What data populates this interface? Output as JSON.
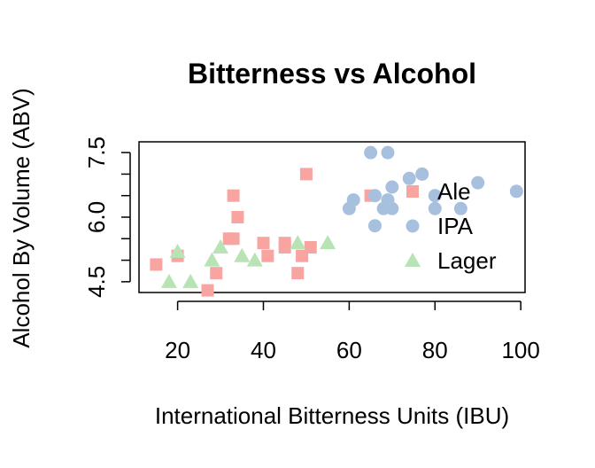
{
  "chart_data": {
    "type": "scatter",
    "title": "Bitterness vs Alcohol",
    "xlabel": "International Bitterness Units (IBU)",
    "ylabel": "Alcohol By Volume (ABV)",
    "xlim": [
      11,
      101
    ],
    "ylim": [
      4.25,
      7.75
    ],
    "x_ticks": [
      20,
      40,
      60,
      80,
      100
    ],
    "x_tick_labels": [
      "20",
      "40",
      "60",
      "80",
      "100"
    ],
    "y_ticks": [
      4.5,
      6.0,
      7.5
    ],
    "y_tick_labels": [
      "4.5",
      "6.0",
      "7.5"
    ],
    "legend_position": "right",
    "grid": false,
    "series": [
      {
        "name": "Ale",
        "marker": "square",
        "color": "#F8A5A2",
        "points": [
          [
            15,
            4.9
          ],
          [
            20,
            5.1
          ],
          [
            27,
            4.3
          ],
          [
            29,
            4.7
          ],
          [
            32,
            5.5
          ],
          [
            33,
            5.5
          ],
          [
            33,
            6.5
          ],
          [
            34,
            6.0
          ],
          [
            40,
            5.4
          ],
          [
            41,
            5.1
          ],
          [
            45,
            5.3
          ],
          [
            45,
            5.4
          ],
          [
            48,
            4.7
          ],
          [
            49,
            5.1
          ],
          [
            50,
            7.0
          ],
          [
            51,
            5.3
          ],
          [
            65,
            6.5
          ]
        ]
      },
      {
        "name": "IPA",
        "marker": "circle",
        "color": "#A7C0DE",
        "points": [
          [
            60,
            6.2
          ],
          [
            61,
            6.4
          ],
          [
            65,
            7.5
          ],
          [
            66,
            5.8
          ],
          [
            66,
            6.5
          ],
          [
            68,
            6.2
          ],
          [
            69,
            7.5
          ],
          [
            69,
            6.4
          ],
          [
            70,
            6.2
          ],
          [
            70,
            6.7
          ],
          [
            74,
            6.9
          ],
          [
            77,
            7.0
          ],
          [
            80,
            6.2
          ],
          [
            80,
            6.5
          ],
          [
            86,
            6.2
          ],
          [
            90,
            6.8
          ],
          [
            99,
            6.6
          ]
        ]
      },
      {
        "name": "Lager",
        "marker": "triangle",
        "color": "#B8E3B5",
        "points": [
          [
            18,
            4.5
          ],
          [
            20,
            5.2
          ],
          [
            23,
            4.5
          ],
          [
            28,
            5.0
          ],
          [
            30,
            5.3
          ],
          [
            35,
            5.1
          ],
          [
            38,
            5.0
          ],
          [
            48,
            5.4
          ],
          [
            55,
            5.4
          ]
        ]
      }
    ]
  }
}
